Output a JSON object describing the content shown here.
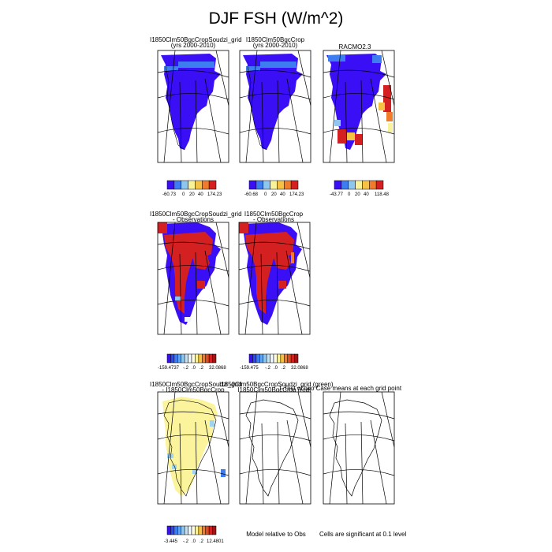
{
  "title": "DJF FSH (W/m^2)",
  "colors": {
    "ice_blue": "#3a0ff5",
    "red": "#d42020",
    "yellow": "#fbf49c",
    "light_blue": "#9fd3ef"
  },
  "colorbars": {
    "seq_colors": [
      "#3a0ff5",
      "#3d7df0",
      "#8fc6f0",
      "#f8f29a",
      "#f5c243",
      "#ef7b2b",
      "#d42020"
    ],
    "diff_colors": [
      "#3a0ff5",
      "#2c48f4",
      "#3d7df0",
      "#5ea6f1",
      "#8fc6f0",
      "#c3e4f7",
      "#eef7fc",
      "#fdfbe0",
      "#f8f29a",
      "#f5c243",
      "#ef7b2b",
      "#e04a23",
      "#d42020",
      "#a01616"
    ]
  },
  "row1": {
    "panels": [
      {
        "title": "I1850Clm50BgcCropSoudzi_grid",
        "subtitle": "(yrs 2000-2010)",
        "cb_min": "-60.73",
        "cb_ticks": [
          "0",
          "20",
          "40"
        ],
        "cb_max": "174.23"
      },
      {
        "title": "I1850Clm50BgcCrop",
        "subtitle": "(yrs 2000-2010)",
        "cb_min": "-60.68",
        "cb_ticks": [
          "0",
          "20",
          "40"
        ],
        "cb_max": "174.23"
      },
      {
        "title": "RACMO2.3",
        "subtitle": "",
        "cb_min": "-43.77",
        "cb_ticks": [
          "0",
          "20",
          "40"
        ],
        "cb_max": "118.48"
      }
    ]
  },
  "row2": {
    "panels": [
      {
        "title": "I1850Clm50BgcCropSoudzi_grid",
        "subtitle": "- Observations",
        "cb_min": "-159.4737",
        "cb_ticks": [
          "-.2",
          ".0",
          ".2"
        ],
        "cb_max": "32.0868"
      },
      {
        "title": "I1850Clm50BgcCrop",
        "subtitle": "- Observations",
        "cb_min": "-159.475",
        "cb_ticks": [
          "-.2",
          ".0",
          ".2"
        ],
        "cb_max": "32.0868"
      }
    ]
  },
  "row3": {
    "panels": [
      {
        "title": "I1850Clm50BgcCropSoudzi_grid",
        "subtitle": "- I1850Clm50BgcCrop",
        "cb_min": "-3.445",
        "cb_ticks": [
          "-.2",
          ".0",
          ".2"
        ],
        "cb_max": "12.4801"
      },
      {
        "title": "I1850Clm50BgcCropSoudzi_grid (green)",
        "subtitle": "I1850Clm50BgcCrop (red)",
        "caption": "Model relative to Obs"
      },
      {
        "title": "T-Test of two Case means at each grid point",
        "caption": "Cells are significant at 0.1 level"
      }
    ]
  }
}
